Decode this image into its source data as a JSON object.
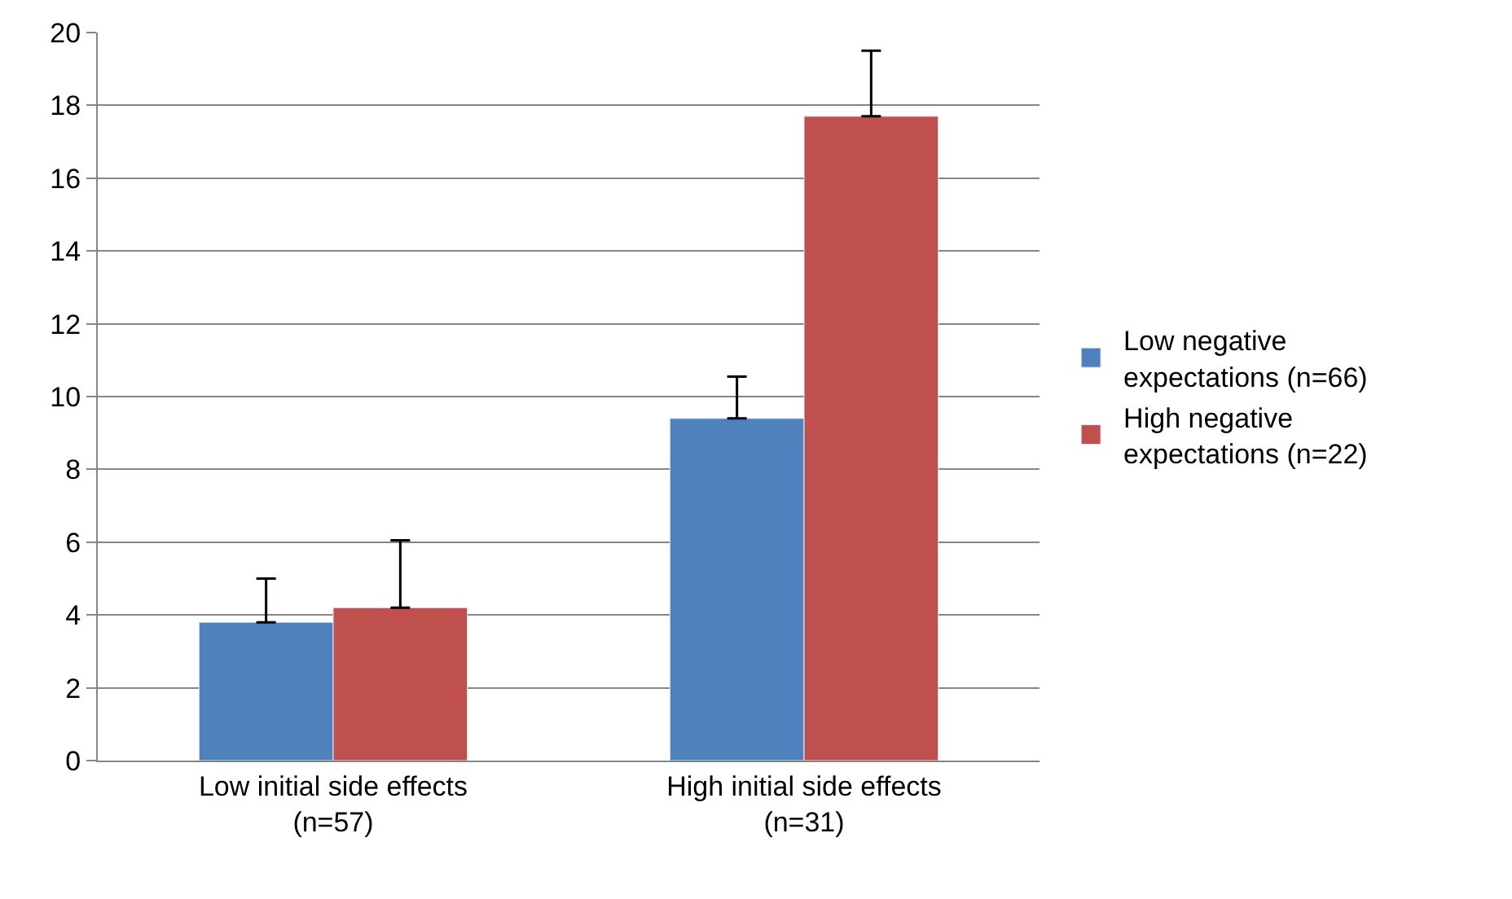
{
  "chart_data": {
    "type": "bar",
    "categories": [
      "Low initial side effects\n(n=57)",
      "High initial side effects\n(n=31)"
    ],
    "series": [
      {
        "name": "Low negative expectations (n=66)",
        "color": "#4f81bd",
        "values": [
          3.8,
          9.4
        ],
        "errors": [
          [
            3.8,
            5.0
          ],
          [
            9.4,
            10.55
          ]
        ]
      },
      {
        "name": "High negative expectations (n=22)",
        "color": "#c0504d",
        "values": [
          4.2,
          17.7
        ],
        "errors": [
          [
            4.2,
            6.05
          ],
          [
            17.7,
            19.5
          ]
        ]
      }
    ],
    "ylim": [
      0,
      20
    ],
    "yticks": [
      0,
      2,
      4,
      6,
      8,
      10,
      12,
      14,
      16,
      18,
      20
    ],
    "grid": "y",
    "legend": "right"
  }
}
